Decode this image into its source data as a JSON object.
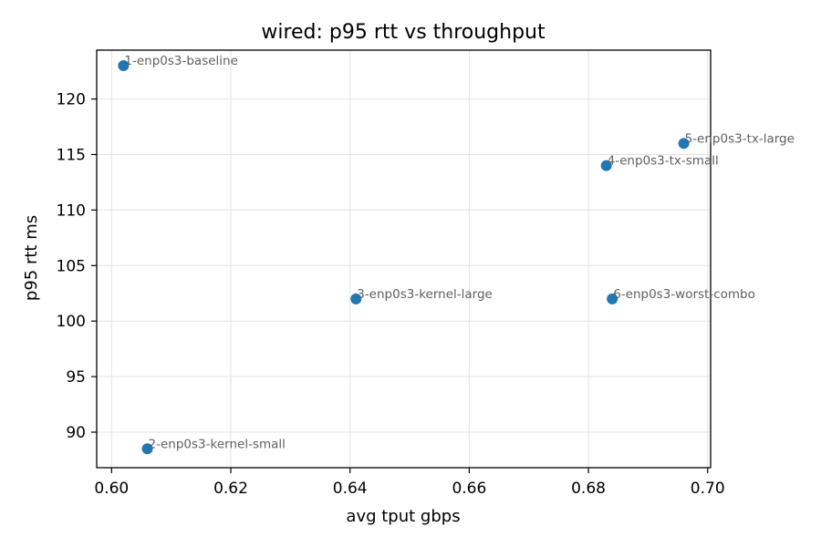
{
  "chart_data": {
    "type": "scatter",
    "title": "wired: p95 rtt vs throughput",
    "xlabel": "avg tput gbps",
    "ylabel": "p95 rtt ms",
    "xlim": [
      0.5975,
      0.7005
    ],
    "ylim": [
      86.8,
      124.4
    ],
    "xticks": [
      0.6,
      0.62,
      0.64,
      0.66,
      0.68,
      0.7
    ],
    "xtick_labels": [
      "0.60",
      "0.62",
      "0.64",
      "0.66",
      "0.68",
      "0.70"
    ],
    "yticks": [
      90,
      95,
      100,
      105,
      110,
      115,
      120
    ],
    "ytick_labels": [
      "90",
      "95",
      "100",
      "105",
      "110",
      "115",
      "120"
    ],
    "grid": true,
    "color": "#1f77b4",
    "points": [
      {
        "label": "1-enp0s3-baseline",
        "x": 0.602,
        "y": 123.0
      },
      {
        "label": "2-enp0s3-kernel-small",
        "x": 0.606,
        "y": 88.5
      },
      {
        "label": "3-enp0s3-kernel-large",
        "x": 0.641,
        "y": 102.0
      },
      {
        "label": "4-enp0s3-tx-small",
        "x": 0.683,
        "y": 114.0
      },
      {
        "label": "5-enp0s3-tx-large",
        "x": 0.696,
        "y": 116.0
      },
      {
        "label": "6-enp0s3-worst-combo",
        "x": 0.684,
        "y": 102.0
      }
    ]
  }
}
